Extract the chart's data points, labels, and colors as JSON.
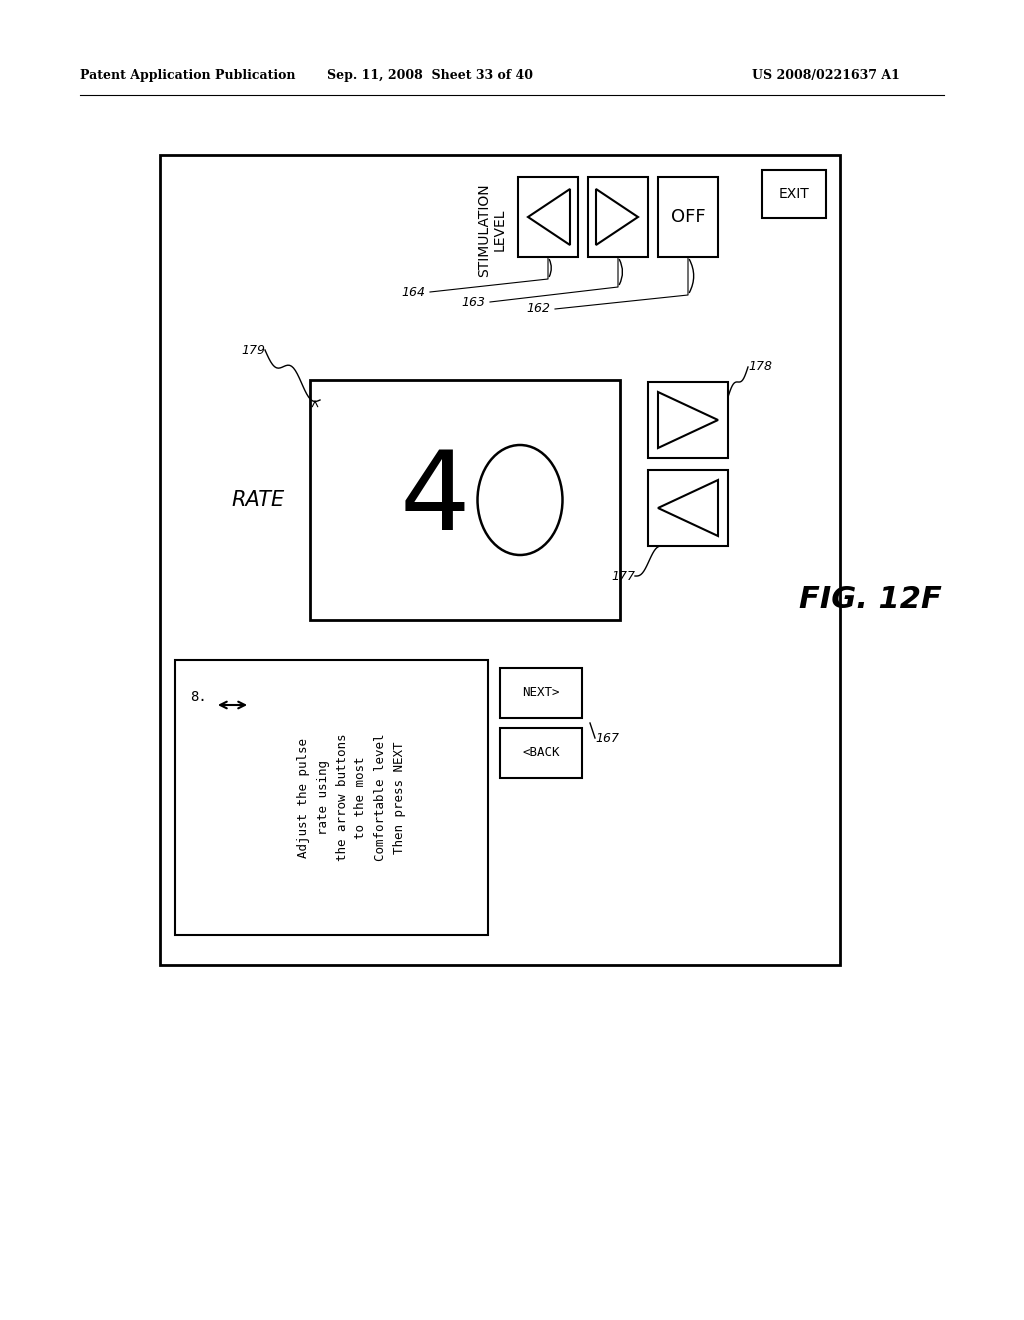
{
  "bg_color": "#ffffff",
  "header_left": "Patent Application Publication",
  "header_mid": "Sep. 11, 2008  Sheet 33 of 40",
  "header_right": "US 2008/0221637 A1",
  "figure_label": "FIG. 12F",
  "stimulation_label": "STIMULATION\nLEVEL",
  "rate_label": "RATE",
  "exit_label": "EXIT",
  "off_label": "OFF",
  "back_label": "<BACK",
  "next_label": "NEXT>",
  "step_number": "8.",
  "instruction_lines": [
    "Adjust the pulse",
    "rate using",
    "the arrow buttons",
    "to the most",
    "Comfortable level",
    "Then press NEXT"
  ],
  "ref_164": "164",
  "ref_163": "163",
  "ref_162": "162",
  "ref_178": "178",
  "ref_179": "179",
  "ref_177": "177",
  "ref_167": "167"
}
